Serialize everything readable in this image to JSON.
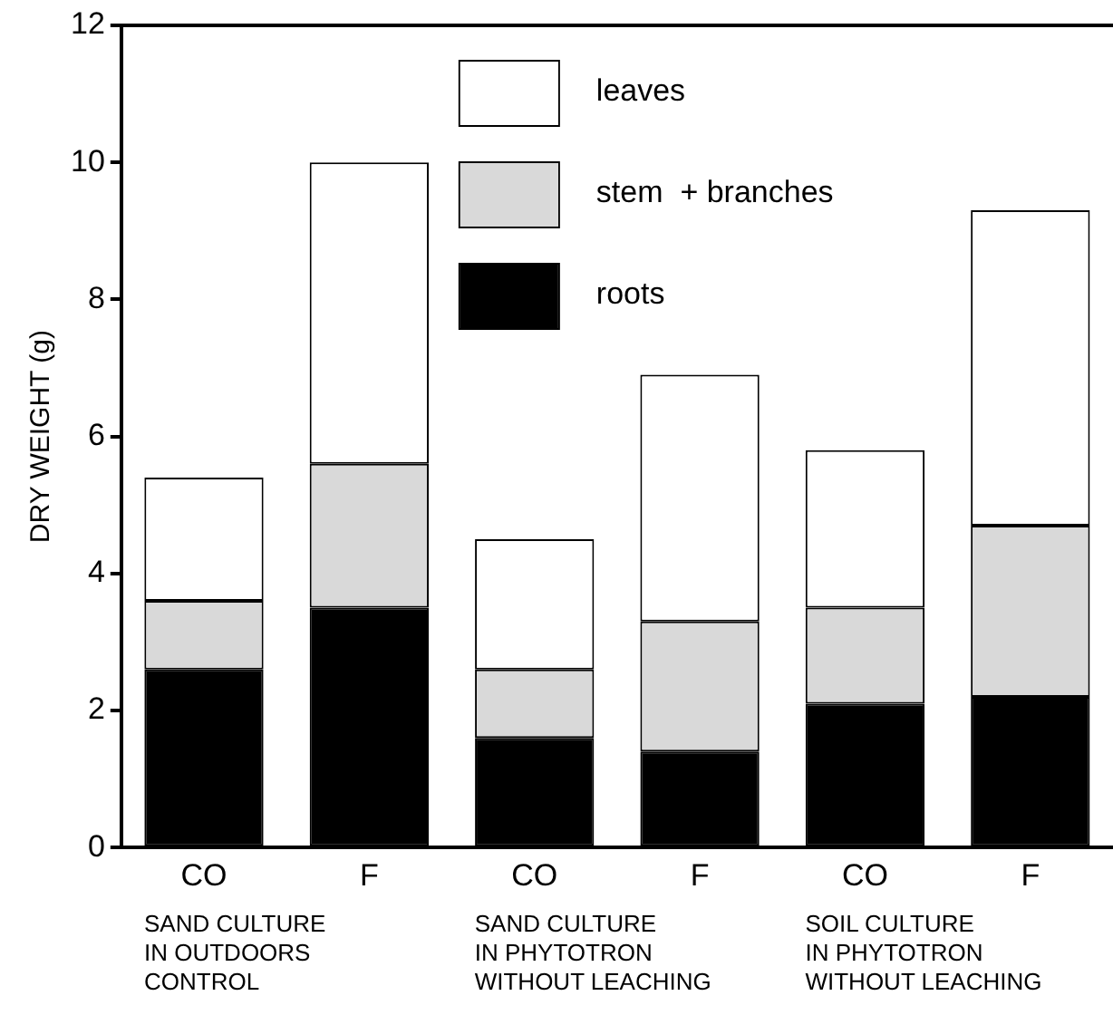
{
  "chart_data": {
    "type": "bar",
    "stacked": true,
    "ylabel": "DRY WEIGHT (g)",
    "categories": [
      "CO",
      "F",
      "CO",
      "F",
      "CO",
      "F"
    ],
    "series": [
      {
        "name": "roots",
        "color": "#000000",
        "values": [
          2.6,
          3.5,
          1.6,
          1.4,
          2.1,
          2.2
        ]
      },
      {
        "name": "stem  + branches",
        "color": "#d9d9d9",
        "values": [
          1.0,
          2.1,
          1.0,
          1.9,
          1.4,
          2.5
        ]
      },
      {
        "name": "leaves",
        "color": "#ffffff",
        "values": [
          1.8,
          4.4,
          1.9,
          3.6,
          2.3,
          4.6
        ]
      }
    ],
    "ylim": [
      0,
      12
    ],
    "yticks": [
      0,
      2,
      4,
      6,
      8,
      10,
      12
    ],
    "grid": false,
    "legend": "top",
    "annotations": [
      "SAND CULTURE\nIN OUTDOORS\nCONTROL",
      "SAND CULTURE\nIN PHYTOTRON\nWITHOUT LEACHING",
      "SOIL CULTURE\nIN PHYTOTRON\nWITHOUT LEACHING"
    ]
  }
}
